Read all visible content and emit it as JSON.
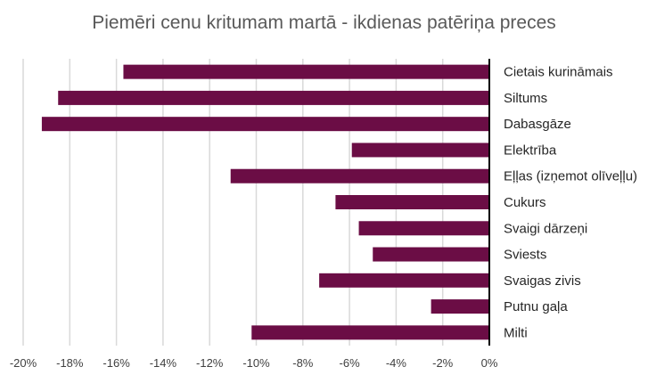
{
  "chart_data": {
    "type": "bar",
    "orientation": "horizontal",
    "title": "Piemēri cenu kritumam martā - ikdienas patēriņa preces",
    "categories": [
      "Cietais kurināmais",
      "Siltums",
      "Dabasgāze",
      "Elektrība",
      "Eļļas (izņemot olīveļļu)",
      "Cukurs",
      "Svaigi dārzeņi",
      "Sviests",
      "Svaigas zivis",
      "Putnu gaļa",
      "Milti"
    ],
    "values": [
      -15.7,
      -18.5,
      -19.2,
      -5.9,
      -11.1,
      -6.6,
      -5.6,
      -5.0,
      -7.3,
      -2.5,
      -10.2
    ],
    "xlim": [
      -20,
      0
    ],
    "x_ticks": [
      "-20%",
      "-18%",
      "-16%",
      "-14%",
      "-12%",
      "-10%",
      "-8%",
      "-6%",
      "-4%",
      "-2%",
      "0%"
    ],
    "x_tick_values": [
      -20,
      -18,
      -16,
      -14,
      -12,
      -10,
      -8,
      -6,
      -4,
      -2,
      0
    ],
    "xlabel": "",
    "ylabel": "",
    "grid": true,
    "legend": "none",
    "bar_color": "#6b0d45",
    "axis_color": "#000000",
    "grid_color": "#d9d9d9"
  }
}
